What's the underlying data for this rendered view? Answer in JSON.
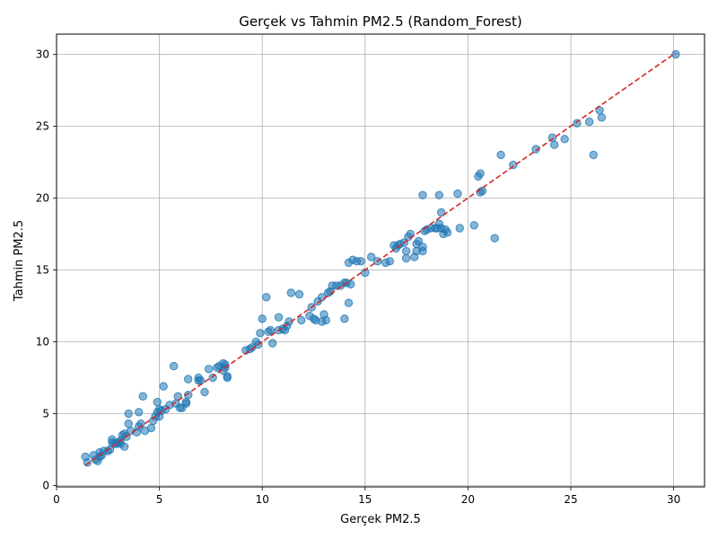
{
  "chart_data": {
    "type": "scatter",
    "title": "Gerçek vs Tahmin PM2.5 (Random_Forest)",
    "xlabel": "Gerçek PM2.5",
    "ylabel": "Tahmin PM2.5",
    "xlim": [
      0,
      31.5
    ],
    "ylim": [
      -0.1,
      31.4
    ],
    "xticks": [
      0,
      5,
      10,
      15,
      20,
      25,
      30
    ],
    "yticks": [
      0,
      5,
      10,
      15,
      20,
      25,
      30
    ],
    "grid": true,
    "point_color": "#1f77b4",
    "reference_line": {
      "from": [
        1.4,
        1.4
      ],
      "to": [
        30.1,
        30.1
      ],
      "color": "#d62728",
      "style": "dashed"
    },
    "points": [
      [
        1.4,
        2.0
      ],
      [
        1.5,
        1.6
      ],
      [
        1.8,
        2.1
      ],
      [
        1.9,
        1.8
      ],
      [
        2.0,
        1.7
      ],
      [
        2.1,
        2.0
      ],
      [
        2.1,
        2.3
      ],
      [
        2.2,
        2.1
      ],
      [
        2.3,
        2.4
      ],
      [
        2.5,
        2.4
      ],
      [
        2.6,
        2.5
      ],
      [
        2.7,
        3.2
      ],
      [
        2.7,
        3.0
      ],
      [
        2.8,
        2.9
      ],
      [
        2.9,
        2.9
      ],
      [
        3.0,
        3.0
      ],
      [
        3.1,
        3.1
      ],
      [
        3.1,
        2.9
      ],
      [
        3.2,
        3.5
      ],
      [
        3.3,
        3.6
      ],
      [
        3.3,
        2.7
      ],
      [
        3.4,
        3.4
      ],
      [
        3.5,
        4.3
      ],
      [
        3.5,
        5.0
      ],
      [
        3.6,
        3.8
      ],
      [
        3.9,
        3.7
      ],
      [
        4.0,
        4.1
      ],
      [
        4.1,
        4.3
      ],
      [
        4.0,
        5.1
      ],
      [
        4.2,
        6.2
      ],
      [
        4.3,
        3.8
      ],
      [
        4.6,
        4.0
      ],
      [
        4.7,
        4.5
      ],
      [
        4.8,
        4.8
      ],
      [
        4.9,
        5.1
      ],
      [
        5.0,
        4.8
      ],
      [
        4.9,
        5.8
      ],
      [
        5.0,
        5.3
      ],
      [
        5.1,
        5.2
      ],
      [
        5.2,
        6.9
      ],
      [
        5.3,
        5.3
      ],
      [
        5.5,
        5.6
      ],
      [
        5.7,
        8.3
      ],
      [
        5.8,
        5.7
      ],
      [
        5.9,
        6.2
      ],
      [
        6.0,
        5.4
      ],
      [
        6.1,
        5.4
      ],
      [
        6.3,
        5.8
      ],
      [
        6.3,
        5.7
      ],
      [
        6.4,
        6.3
      ],
      [
        6.4,
        7.4
      ],
      [
        6.9,
        7.3
      ],
      [
        6.9,
        7.5
      ],
      [
        7.0,
        7.3
      ],
      [
        7.2,
        6.5
      ],
      [
        7.4,
        8.1
      ],
      [
        7.6,
        7.5
      ],
      [
        7.8,
        8.2
      ],
      [
        7.9,
        8.3
      ],
      [
        8.1,
        8.5
      ],
      [
        8.1,
        8.0
      ],
      [
        8.2,
        8.2
      ],
      [
        8.3,
        7.6
      ],
      [
        8.3,
        7.5
      ],
      [
        8.2,
        8.4
      ],
      [
        9.2,
        9.4
      ],
      [
        9.4,
        9.5
      ],
      [
        9.5,
        9.6
      ],
      [
        9.7,
        10.0
      ],
      [
        9.8,
        9.8
      ],
      [
        9.9,
        10.6
      ],
      [
        10.0,
        11.6
      ],
      [
        10.2,
        13.1
      ],
      [
        10.3,
        10.7
      ],
      [
        10.4,
        10.8
      ],
      [
        10.5,
        9.9
      ],
      [
        10.8,
        11.7
      ],
      [
        10.8,
        10.8
      ],
      [
        11.0,
        10.9
      ],
      [
        11.1,
        10.8
      ],
      [
        11.2,
        11.1
      ],
      [
        11.3,
        11.4
      ],
      [
        11.4,
        13.4
      ],
      [
        11.8,
        13.3
      ],
      [
        11.9,
        11.5
      ],
      [
        12.3,
        11.8
      ],
      [
        12.4,
        12.4
      ],
      [
        12.5,
        11.6
      ],
      [
        12.6,
        11.5
      ],
      [
        12.7,
        12.8
      ],
      [
        12.9,
        11.4
      ],
      [
        12.9,
        13.1
      ],
      [
        13.0,
        11.9
      ],
      [
        13.1,
        11.5
      ],
      [
        13.2,
        13.4
      ],
      [
        13.3,
        13.5
      ],
      [
        13.4,
        13.9
      ],
      [
        13.6,
        13.9
      ],
      [
        13.8,
        13.9
      ],
      [
        14.0,
        11.6
      ],
      [
        14.0,
        14.1
      ],
      [
        14.1,
        14.1
      ],
      [
        14.2,
        15.5
      ],
      [
        14.2,
        12.7
      ],
      [
        14.3,
        14.0
      ],
      [
        14.4,
        15.7
      ],
      [
        14.6,
        15.6
      ],
      [
        14.8,
        15.6
      ],
      [
        15.0,
        14.8
      ],
      [
        15.3,
        15.9
      ],
      [
        15.6,
        15.6
      ],
      [
        16.0,
        15.5
      ],
      [
        16.2,
        15.6
      ],
      [
        16.4,
        16.7
      ],
      [
        16.5,
        16.5
      ],
      [
        16.6,
        16.7
      ],
      [
        16.7,
        16.8
      ],
      [
        16.9,
        16.9
      ],
      [
        17.0,
        15.8
      ],
      [
        17.0,
        16.3
      ],
      [
        17.1,
        17.3
      ],
      [
        17.2,
        17.5
      ],
      [
        17.4,
        15.9
      ],
      [
        17.5,
        16.3
      ],
      [
        17.5,
        16.8
      ],
      [
        17.6,
        17.0
      ],
      [
        17.8,
        20.2
      ],
      [
        17.8,
        16.3
      ],
      [
        17.8,
        16.6
      ],
      [
        17.9,
        17.7
      ],
      [
        18.0,
        17.8
      ],
      [
        18.2,
        17.9
      ],
      [
        18.4,
        17.9
      ],
      [
        18.5,
        17.9
      ],
      [
        18.6,
        20.2
      ],
      [
        18.6,
        18.2
      ],
      [
        18.7,
        19.0
      ],
      [
        18.7,
        17.9
      ],
      [
        18.8,
        17.5
      ],
      [
        18.9,
        17.8
      ],
      [
        19.0,
        17.6
      ],
      [
        19.5,
        20.3
      ],
      [
        19.6,
        17.9
      ],
      [
        20.3,
        18.1
      ],
      [
        20.5,
        21.5
      ],
      [
        20.6,
        21.7
      ],
      [
        20.6,
        20.4
      ],
      [
        20.7,
        20.5
      ],
      [
        21.3,
        17.2
      ],
      [
        21.6,
        23.0
      ],
      [
        22.2,
        22.3
      ],
      [
        23.3,
        23.4
      ],
      [
        24.1,
        24.2
      ],
      [
        24.2,
        23.7
      ],
      [
        24.7,
        24.1
      ],
      [
        25.3,
        25.2
      ],
      [
        25.9,
        25.3
      ],
      [
        26.1,
        23.0
      ],
      [
        26.4,
        26.1
      ],
      [
        26.5,
        25.6
      ],
      [
        30.1,
        30.0
      ]
    ]
  }
}
